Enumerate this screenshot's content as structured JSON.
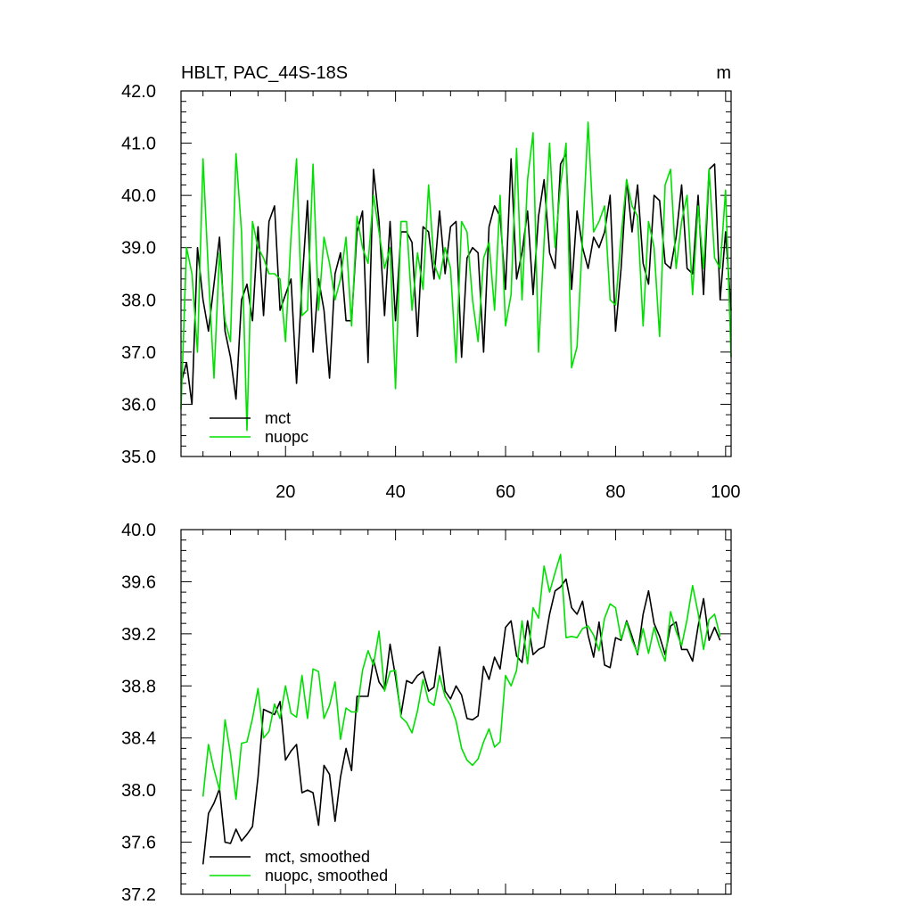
{
  "colors": {
    "mct": "#000000",
    "nuopc": "#00e000"
  },
  "chart_data": [
    {
      "type": "line",
      "title": "HBLT, PAC_44S-18S",
      "units": "m",
      "xlim": [
        1,
        101
      ],
      "ylim": [
        35.0,
        42.0
      ],
      "x_ticks": [
        "20",
        "40",
        "60",
        "80",
        "100"
      ],
      "y_ticks": [
        "35.0",
        "36.0",
        "37.0",
        "38.0",
        "39.0",
        "40.0",
        "41.0",
        "42.0"
      ],
      "legend": [
        "mct",
        "nuopc"
      ],
      "legend_position": "bottom-left",
      "series": [
        {
          "name": "mct",
          "color": "#000000",
          "x_start": 1,
          "values": [
            36.4,
            36.8,
            36.0,
            39.0,
            38.0,
            37.4,
            38.3,
            39.2,
            37.4,
            36.9,
            36.1,
            38.0,
            38.3,
            37.6,
            39.4,
            37.7,
            39.5,
            39.8,
            37.8,
            38.1,
            38.4,
            36.4,
            38.3,
            39.9,
            37.0,
            38.4,
            37.8,
            36.5,
            38.5,
            38.9,
            37.6,
            37.6,
            39.3,
            39.7,
            36.8,
            40.5,
            39.5,
            37.7,
            39.5,
            37.6,
            39.3,
            39.3,
            39.1,
            37.3,
            39.4,
            39.3,
            38.4,
            39.7,
            38.5,
            39.4,
            39.5,
            36.9,
            38.8,
            39.0,
            38.9,
            37.0,
            39.4,
            39.8,
            39.6,
            38.2,
            40.7,
            38.4,
            38.9,
            39.7,
            38.1,
            39.6,
            40.3,
            38.9,
            38.6,
            40.6,
            40.8,
            38.2,
            39.7,
            39.0,
            38.6,
            39.2,
            39.0,
            39.3,
            40.0,
            37.4,
            38.6,
            40.3,
            39.3,
            40.2,
            38.7,
            38.3,
            40.0,
            39.9,
            38.7,
            38.6,
            39.2,
            40.2,
            38.6,
            38.5,
            40.0,
            38.1,
            40.5,
            40.6,
            38.0,
            39.3,
            37.8
          ]
        },
        {
          "name": "nuopc",
          "color": "#00e000",
          "x_start": 1,
          "values": [
            35.9,
            39.0,
            38.5,
            37.0,
            40.7,
            38.5,
            36.5,
            38.9,
            37.6,
            37.2,
            40.8,
            39.3,
            35.5,
            39.5,
            39.0,
            38.8,
            38.5,
            38.5,
            38.4,
            37.2,
            39.2,
            40.7,
            37.7,
            37.8,
            40.6,
            37.8,
            39.2,
            38.7,
            38.0,
            38.4,
            39.2,
            37.5,
            39.6,
            39.0,
            38.7,
            40.0,
            39.3,
            38.6,
            39.0,
            36.3,
            39.5,
            39.5,
            37.8,
            38.9,
            38.2,
            40.2,
            38.7,
            38.4,
            39.0,
            38.6,
            36.8,
            39.5,
            39.3,
            38.0,
            37.2,
            38.8,
            39.1,
            37.8,
            40.0,
            37.5,
            38.1,
            40.9,
            38.0,
            40.3,
            41.2,
            37.0,
            39.1,
            41.0,
            39.0,
            40.2,
            41.0,
            36.7,
            37.1,
            39.2,
            41.4,
            39.3,
            39.5,
            39.8,
            38.0,
            37.9,
            39.2,
            40.3,
            39.8,
            39.6,
            37.5,
            39.5,
            39.0,
            37.3,
            40.2,
            40.5,
            38.6,
            39.5,
            40.0,
            38.1,
            39.8,
            38.6,
            40.5,
            38.8,
            38.6,
            40.1,
            36.9
          ]
        }
      ]
    },
    {
      "type": "line",
      "title": "",
      "xlim": [
        1,
        101
      ],
      "ylim": [
        37.2,
        40.0
      ],
      "x_ticks": [
        "",
        "",
        "",
        "",
        ""
      ],
      "y_ticks": [
        "37.2",
        "37.6",
        "38.0",
        "38.4",
        "38.8",
        "39.2",
        "39.6",
        "40.0"
      ],
      "legend": [
        "mct, smoothed",
        "nuopc, smoothed"
      ],
      "legend_position": "bottom-left",
      "series": [
        {
          "name": "mct, smoothed",
          "color": "#000000",
          "x_start": 5,
          "values": [
            37.43,
            37.82,
            37.9,
            38.01,
            37.6,
            37.59,
            37.7,
            37.61,
            37.66,
            37.72,
            38.1,
            38.62,
            38.6,
            38.58,
            38.68,
            38.23,
            38.3,
            38.35,
            37.98,
            38.0,
            37.98,
            37.73,
            38.19,
            38.12,
            37.76,
            38.1,
            38.32,
            38.15,
            38.72,
            38.72,
            38.72,
            39.0,
            38.83,
            38.77,
            39.12,
            38.87,
            38.58,
            38.84,
            38.82,
            38.88,
            38.91,
            38.76,
            38.79,
            39.1,
            38.76,
            38.7,
            38.8,
            38.73,
            38.55,
            38.54,
            38.57,
            38.95,
            38.85,
            39.02,
            38.93,
            39.25,
            39.3,
            39.03,
            38.98,
            39.3,
            39.04,
            39.08,
            39.1,
            39.35,
            39.53,
            39.56,
            39.62,
            39.4,
            39.35,
            39.45,
            39.19,
            39.02,
            39.29,
            38.96,
            38.94,
            39.17,
            39.15,
            39.3,
            39.18,
            39.04,
            39.35,
            39.53,
            39.28,
            39.18,
            39.04,
            39.26,
            39.29,
            39.08,
            39.08,
            38.99,
            39.26,
            39.47,
            39.15,
            39.25,
            39.15
          ]
        },
        {
          "name": "nuopc, smoothed",
          "color": "#00e000",
          "x_start": 5,
          "values": [
            37.95,
            38.35,
            38.16,
            38.0,
            38.54,
            38.28,
            37.93,
            38.36,
            38.37,
            38.55,
            38.78,
            38.4,
            38.45,
            38.66,
            38.55,
            38.8,
            38.59,
            38.56,
            38.88,
            38.55,
            38.93,
            38.91,
            38.55,
            38.65,
            38.83,
            38.39,
            38.63,
            38.6,
            38.6,
            38.92,
            39.07,
            38.96,
            39.22,
            38.76,
            38.91,
            38.92,
            38.56,
            38.52,
            38.44,
            38.61,
            38.85,
            38.68,
            38.65,
            38.88,
            38.72,
            38.65,
            38.53,
            38.32,
            38.23,
            38.19,
            38.24,
            38.37,
            38.47,
            38.33,
            38.37,
            38.88,
            38.8,
            38.92,
            39.3,
            38.97,
            39.4,
            39.32,
            39.72,
            39.52,
            39.67,
            39.81,
            39.17,
            39.18,
            39.17,
            39.24,
            39.26,
            39.19,
            39.07,
            39.32,
            39.43,
            39.4,
            39.16,
            39.29,
            39.15,
            39.05,
            39.24,
            39.05,
            39.25,
            39.1,
            38.99,
            39.37,
            39.22,
            39.11,
            39.31,
            39.57,
            39.36,
            39.08,
            39.31,
            39.35,
            39.18
          ]
        }
      ]
    }
  ]
}
